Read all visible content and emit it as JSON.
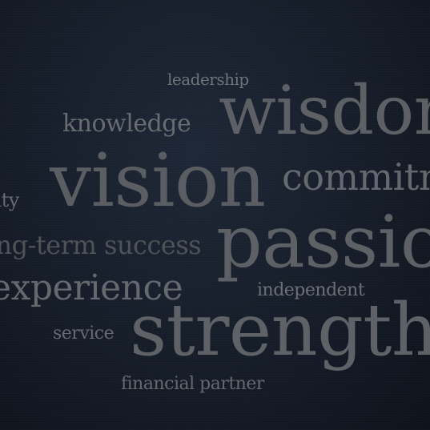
{
  "words": {
    "leadership": "leadership",
    "wisdom": "wisdom",
    "knowledge": "knowledge",
    "vision": "vision",
    "commitment": "commitment",
    "responsibility": "responsibility",
    "passion": "passion",
    "long_term_success": "long-term success",
    "experience": "experience",
    "independent": "independent",
    "service": "service",
    "strength": "strength",
    "financial_partner": "financial partner"
  },
  "colors": {
    "background": "#161d29",
    "text": "#5d6166"
  }
}
